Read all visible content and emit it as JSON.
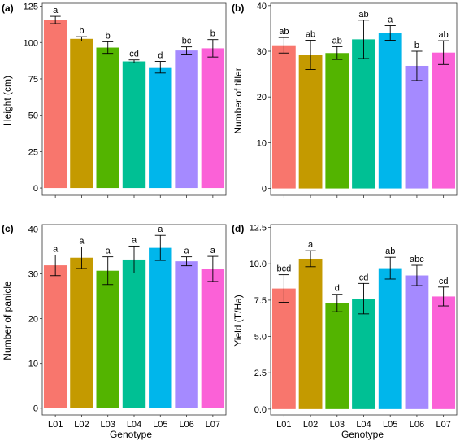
{
  "chart_data": [
    {
      "panel": "(a)",
      "type": "bar",
      "xlabel": "",
      "ylabel": "Height (cm)",
      "categories": [
        "L01",
        "L02",
        "L03",
        "L04",
        "L05",
        "L06",
        "L07"
      ],
      "show_category_labels": false,
      "values": [
        115.5,
        102.5,
        96.5,
        87,
        83,
        94.5,
        96
      ],
      "errors": [
        2.5,
        1.5,
        4,
        1,
        4,
        2.5,
        6
      ],
      "significance": [
        "a",
        "b",
        "b",
        "cd",
        "d",
        "bc",
        "b"
      ],
      "ylim": [
        -5,
        127
      ],
      "yticks": [
        0,
        25,
        50,
        75,
        100,
        125
      ],
      "ytick_labels": [
        "0",
        "25",
        "50",
        "75",
        "100",
        "125"
      ],
      "grid": false,
      "legend": "none"
    },
    {
      "panel": "(b)",
      "type": "bar",
      "xlabel": "",
      "ylabel": "Number of tiller",
      "categories": [
        "L01",
        "L02",
        "L03",
        "L04",
        "L05",
        "L06",
        "L07"
      ],
      "show_category_labels": false,
      "values": [
        31.3,
        29.2,
        29.6,
        32.6,
        34,
        26.8,
        29.7
      ],
      "errors": [
        1.7,
        3.2,
        1.4,
        4.2,
        1.6,
        3.2,
        2.6
      ],
      "significance": [
        "ab",
        "ab",
        "ab",
        "ab",
        "a",
        "b",
        "ab"
      ],
      "ylim": [
        -1.5,
        40.5
      ],
      "yticks": [
        0,
        10,
        20,
        30,
        40
      ],
      "ytick_labels": [
        "0",
        "10",
        "20",
        "30",
        "40"
      ],
      "grid": false,
      "legend": "none"
    },
    {
      "panel": "(c)",
      "type": "bar",
      "xlabel": "Genotype",
      "ylabel": "Number of panicle",
      "categories": [
        "L01",
        "L02",
        "L03",
        "L04",
        "L05",
        "L06",
        "L07"
      ],
      "show_category_labels": true,
      "values": [
        31.9,
        33.6,
        30.7,
        33.2,
        35.8,
        32.8,
        31.1
      ],
      "errors": [
        2.3,
        2.4,
        3.1,
        3,
        2.8,
        1,
        2.8
      ],
      "significance": [
        "a",
        "a",
        "a",
        "a",
        "a",
        "a",
        "a"
      ],
      "ylim": [
        -1.5,
        41
      ],
      "yticks": [
        0,
        10,
        20,
        30,
        40
      ],
      "ytick_labels": [
        "0",
        "10",
        "20",
        "30",
        "40"
      ],
      "grid": false,
      "legend": "none"
    },
    {
      "panel": "(d)",
      "type": "bar",
      "xlabel": "Genotype",
      "ylabel": "Yield (T/Ha)",
      "categories": [
        "L01",
        "L02",
        "L03",
        "L04",
        "L05",
        "L06",
        "L07"
      ],
      "show_category_labels": true,
      "values": [
        8.3,
        10.35,
        7.3,
        7.6,
        9.7,
        9.2,
        7.75
      ],
      "errors": [
        0.95,
        0.55,
        0.6,
        1.05,
        0.75,
        0.7,
        0.65
      ],
      "significance": [
        "bcd",
        "a",
        "d",
        "cd",
        "ab",
        "abc",
        "cd"
      ],
      "ylim": [
        -0.4,
        12.7
      ],
      "yticks": [
        0,
        2.5,
        5,
        7.5,
        10,
        12.5
      ],
      "ytick_labels": [
        "0.0",
        "2.5",
        "5.0",
        "7.5",
        "10.0",
        "12.5"
      ],
      "grid": false,
      "legend": "none"
    }
  ],
  "bar_colors": [
    "#F8766D",
    "#C49A00",
    "#53B400",
    "#00C094",
    "#00B6EB",
    "#A58AFF",
    "#FB61D7"
  ]
}
